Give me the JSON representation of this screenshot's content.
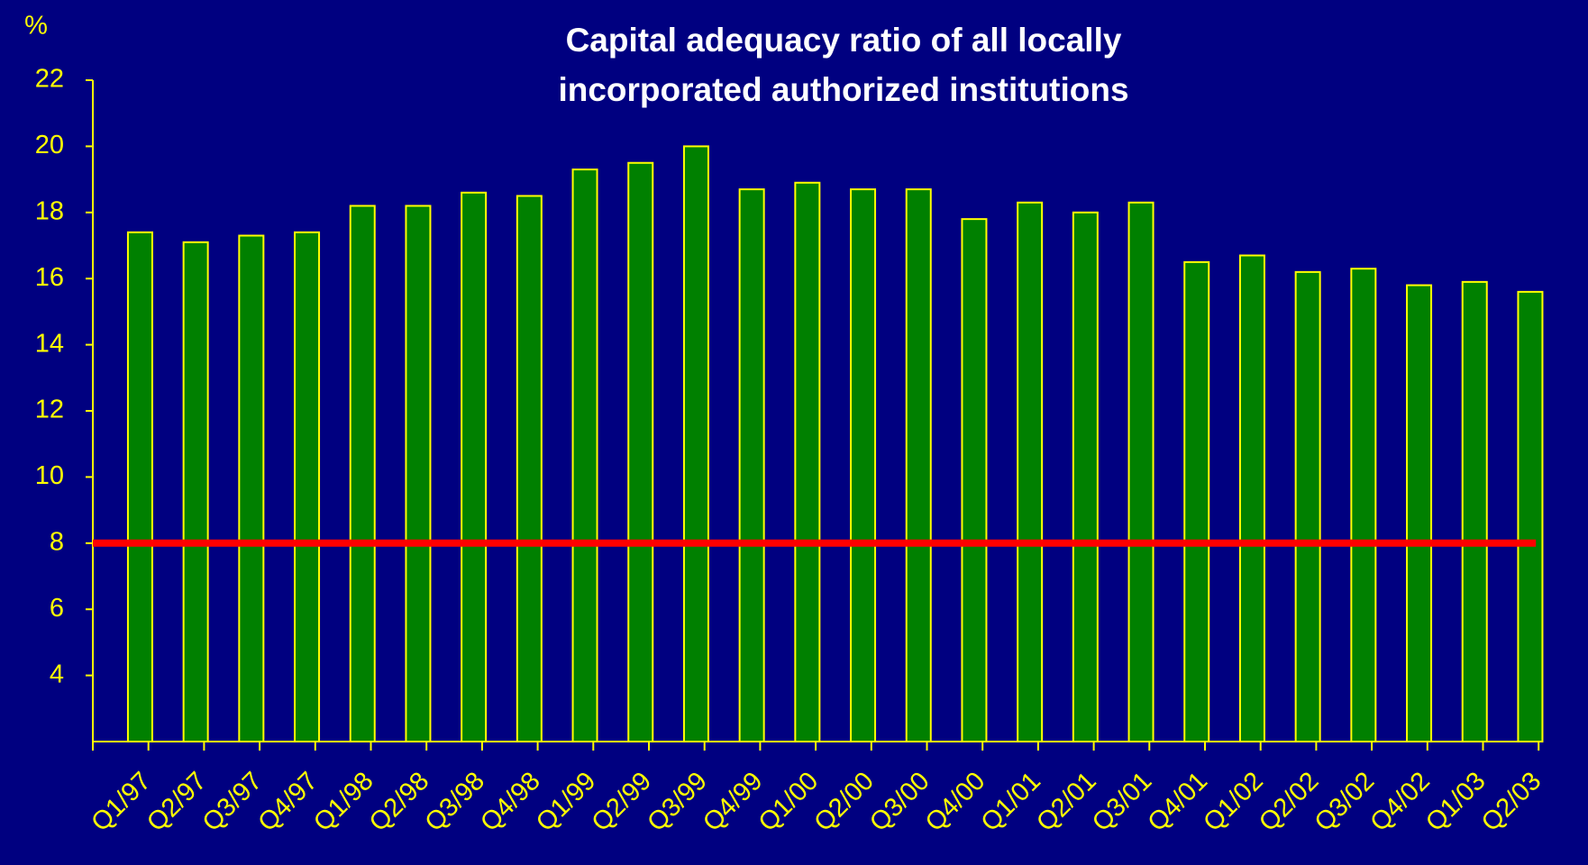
{
  "chart_data": {
    "type": "bar",
    "title": [
      "Capital adequacy ratio of all locally",
      "incorporated authorized institutions"
    ],
    "y_label": "%",
    "categories": [
      "Q1/97",
      "Q2/97",
      "Q3/97",
      "Q4/97",
      "Q1/98",
      "Q2/98",
      "Q3/98",
      "Q4/98",
      "Q1/99",
      "Q2/99",
      "Q3/99",
      "Q4/99",
      "Q1/00",
      "Q2/00",
      "Q3/00",
      "Q4/00",
      "Q1/01",
      "Q2/01",
      "Q3/01",
      "Q4/01",
      "Q1/02",
      "Q2/02",
      "Q3/02",
      "Q4/02",
      "Q1/03",
      "Q2/03"
    ],
    "values": [
      17.4,
      17.1,
      17.3,
      17.4,
      18.2,
      18.2,
      18.6,
      18.5,
      19.3,
      19.5,
      20.0,
      18.7,
      18.9,
      18.7,
      18.7,
      17.8,
      18.3,
      18.0,
      18.3,
      16.5,
      16.7,
      16.2,
      16.3,
      15.8,
      15.9,
      15.6
    ],
    "color": "#008000",
    "edge_color": "#ffff00",
    "ylim": [
      2,
      22
    ],
    "yticks": [
      4,
      6,
      8,
      10,
      12,
      14,
      16,
      18,
      20,
      22
    ],
    "reference_line": {
      "value": 8,
      "color": "#ff0000"
    },
    "grid": false
  }
}
